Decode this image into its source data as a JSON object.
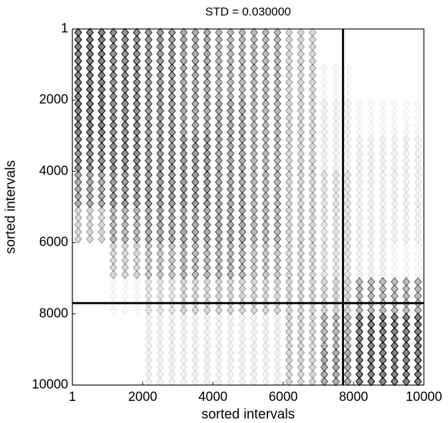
{
  "chart_data": {
    "type": "contour",
    "title": "STD = 0.030000",
    "xlabel": "sorted intervals",
    "ylabel": "sorted intervals",
    "xlim": [
      1,
      10000
    ],
    "ylim": [
      1,
      10000
    ],
    "y_inverted": true,
    "xticks": [
      1,
      2000,
      4000,
      6000,
      8000,
      10000
    ],
    "yticks": [
      1,
      2000,
      4000,
      6000,
      8000,
      10000
    ],
    "z": [
      [
        0.9,
        0.8,
        0.7,
        0.6,
        0.5,
        0.5,
        0.3,
        0,
        0,
        0
      ],
      [
        0.9,
        0.8,
        0.7,
        0.6,
        0.5,
        0.5,
        0.3,
        0.05,
        0,
        0
      ],
      [
        0.9,
        0.8,
        0.7,
        0.6,
        0.6,
        0.5,
        0.3,
        0.1,
        0.05,
        0.05
      ],
      [
        0.8,
        0.8,
        0.7,
        0.7,
        0.6,
        0.5,
        0.3,
        0.1,
        0.1,
        0.1
      ],
      [
        0.6,
        0.7,
        0.7,
        0.7,
        0.6,
        0.5,
        0.3,
        0.2,
        0.1,
        0.1
      ],
      [
        0.3,
        0.5,
        0.6,
        0.6,
        0.6,
        0.5,
        0.3,
        0.2,
        0.1,
        0.1
      ],
      [
        0,
        0.3,
        0.4,
        0.5,
        0.5,
        0.4,
        0.3,
        0.2,
        0.1,
        0.05
      ],
      [
        0,
        0.05,
        0.2,
        0.3,
        0.3,
        0.3,
        0.3,
        0.3,
        0.5,
        0.5
      ],
      [
        0,
        0,
        0.1,
        0.1,
        0.1,
        0.1,
        0.3,
        0.5,
        0.9,
        0.9
      ],
      [
        0,
        0,
        0.1,
        0.1,
        0.1,
        0.1,
        0.3,
        0.6,
        0.9,
        0.9
      ]
    ],
    "vlines": [
      7700
    ],
    "hlines": [
      7700
    ],
    "line_color": "#000000"
  }
}
